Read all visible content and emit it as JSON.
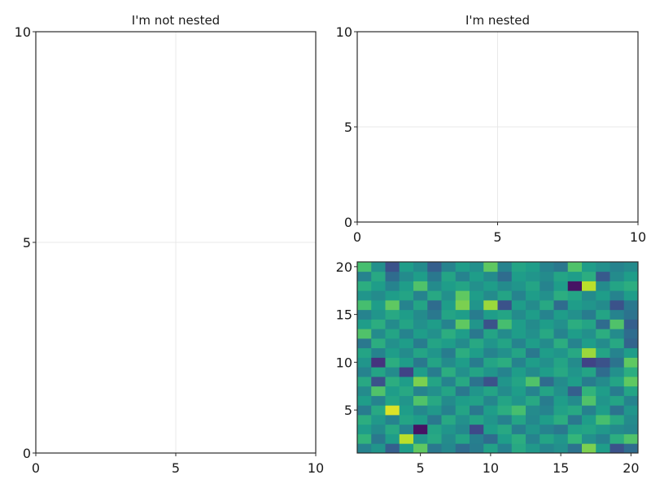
{
  "chart_data": [
    {
      "type": "line",
      "title": "I'm not nested",
      "xlabel": "",
      "ylabel": "",
      "xlim": [
        0,
        10
      ],
      "ylim": [
        0,
        10
      ],
      "xticks": [
        "0",
        "5",
        "10"
      ],
      "yticks": [
        "0",
        "5",
        "10"
      ],
      "grid": true,
      "series": []
    },
    {
      "type": "line",
      "title": "I'm nested",
      "xlabel": "",
      "ylabel": "",
      "xlim": [
        0,
        10
      ],
      "ylim": [
        0,
        10
      ],
      "xticks": [
        "0",
        "5",
        "10"
      ],
      "yticks": [
        "0",
        "5",
        "10"
      ],
      "grid": true,
      "series": []
    },
    {
      "type": "heatmap",
      "title": "",
      "xlabel": "",
      "ylabel": "",
      "colormap": "viridis",
      "xlim": [
        0.5,
        20.5
      ],
      "ylim": [
        0.5,
        20.5
      ],
      "xticks": [
        "5",
        "10",
        "15",
        "20"
      ],
      "yticks": [
        "5",
        "10",
        "15",
        "20"
      ],
      "x": [
        1,
        2,
        3,
        4,
        5,
        6,
        7,
        8,
        9,
        10,
        11,
        12,
        13,
        14,
        15,
        16,
        17,
        18,
        19,
        20
      ],
      "y": [
        1,
        2,
        3,
        4,
        5,
        6,
        7,
        8,
        9,
        10,
        11,
        12,
        13,
        14,
        15,
        16,
        17,
        18,
        19,
        20
      ],
      "values": [
        [
          0.45,
          0.52,
          0.3,
          0.55,
          0.75,
          0.4,
          0.47,
          0.35,
          0.42,
          0.57,
          0.44,
          0.6,
          0.53,
          0.46,
          0.5,
          0.38,
          0.8,
          0.55,
          0.25,
          0.35
        ],
        [
          0.65,
          0.4,
          0.55,
          0.9,
          0.52,
          0.6,
          0.48,
          0.58,
          0.43,
          0.35,
          0.55,
          0.62,
          0.45,
          0.58,
          0.52,
          0.66,
          0.5,
          0.44,
          0.62,
          0.72
        ],
        [
          0.55,
          0.48,
          0.6,
          0.45,
          0.05,
          0.58,
          0.52,
          0.47,
          0.22,
          0.55,
          0.6,
          0.43,
          0.52,
          0.45,
          0.4,
          0.57,
          0.58,
          0.53,
          0.48,
          0.46
        ],
        [
          0.62,
          0.53,
          0.45,
          0.58,
          0.55,
          0.4,
          0.6,
          0.5,
          0.58,
          0.52,
          0.44,
          0.58,
          0.47,
          0.55,
          0.62,
          0.4,
          0.55,
          0.7,
          0.6,
          0.48
        ],
        [
          0.42,
          0.6,
          0.95,
          0.55,
          0.47,
          0.53,
          0.44,
          0.58,
          0.4,
          0.55,
          0.62,
          0.7,
          0.48,
          0.45,
          0.57,
          0.6,
          0.44,
          0.55,
          0.38,
          0.52
        ],
        [
          0.55,
          0.45,
          0.58,
          0.52,
          0.72,
          0.6,
          0.48,
          0.55,
          0.57,
          0.46,
          0.58,
          0.52,
          0.6,
          0.42,
          0.55,
          0.48,
          0.72,
          0.52,
          0.58,
          0.45
        ],
        [
          0.48,
          0.72,
          0.55,
          0.6,
          0.45,
          0.5,
          0.58,
          0.4,
          0.52,
          0.58,
          0.48,
          0.55,
          0.45,
          0.58,
          0.5,
          0.3,
          0.65,
          0.55,
          0.42,
          0.58
        ],
        [
          0.6,
          0.25,
          0.62,
          0.55,
          0.8,
          0.58,
          0.45,
          0.6,
          0.38,
          0.25,
          0.52,
          0.58,
          0.72,
          0.35,
          0.48,
          0.55,
          0.42,
          0.48,
          0.58,
          0.75
        ],
        [
          0.45,
          0.58,
          0.48,
          0.2,
          0.55,
          0.42,
          0.62,
          0.5,
          0.58,
          0.52,
          0.45,
          0.55,
          0.48,
          0.55,
          0.6,
          0.52,
          0.58,
          0.35,
          0.5,
          0.62
        ],
        [
          0.52,
          0.15,
          0.62,
          0.55,
          0.4,
          0.58,
          0.48,
          0.55,
          0.42,
          0.58,
          0.62,
          0.45,
          0.55,
          0.5,
          0.58,
          0.48,
          0.2,
          0.25,
          0.38,
          0.75
        ],
        [
          0.58,
          0.45,
          0.55,
          0.48,
          0.58,
          0.52,
          0.42,
          0.62,
          0.55,
          0.45,
          0.5,
          0.58,
          0.4,
          0.55,
          0.52,
          0.6,
          0.85,
          0.58,
          0.45,
          0.55
        ],
        [
          0.4,
          0.62,
          0.5,
          0.55,
          0.42,
          0.58,
          0.55,
          0.48,
          0.6,
          0.52,
          0.58,
          0.45,
          0.55,
          0.48,
          0.62,
          0.45,
          0.55,
          0.48,
          0.6,
          0.32
        ],
        [
          0.72,
          0.48,
          0.58,
          0.45,
          0.55,
          0.5,
          0.62,
          0.55,
          0.4,
          0.58,
          0.48,
          0.55,
          0.5,
          0.6,
          0.45,
          0.55,
          0.5,
          0.62,
          0.48,
          0.35
        ],
        [
          0.55,
          0.62,
          0.48,
          0.58,
          0.5,
          0.55,
          0.45,
          0.75,
          0.52,
          0.25,
          0.7,
          0.55,
          0.48,
          0.55,
          0.5,
          0.62,
          0.58,
          0.35,
          0.72,
          0.3
        ],
        [
          0.45,
          0.52,
          0.6,
          0.55,
          0.48,
          0.4,
          0.58,
          0.55,
          0.42,
          0.55,
          0.58,
          0.48,
          0.55,
          0.45,
          0.55,
          0.5,
          0.42,
          0.58,
          0.45,
          0.38
        ],
        [
          0.7,
          0.55,
          0.75,
          0.45,
          0.58,
          0.35,
          0.55,
          0.8,
          0.52,
          0.85,
          0.25,
          0.55,
          0.48,
          0.6,
          0.35,
          0.55,
          0.52,
          0.48,
          0.25,
          0.4
        ],
        [
          0.52,
          0.48,
          0.55,
          0.58,
          0.45,
          0.6,
          0.5,
          0.75,
          0.55,
          0.48,
          0.58,
          0.45,
          0.55,
          0.5,
          0.62,
          0.58,
          0.48,
          0.55,
          0.45,
          0.55
        ],
        [
          0.62,
          0.55,
          0.45,
          0.55,
          0.72,
          0.48,
          0.55,
          0.58,
          0.5,
          0.55,
          0.48,
          0.52,
          0.58,
          0.45,
          0.55,
          0.05,
          0.9,
          0.48,
          0.58,
          0.62
        ],
        [
          0.45,
          0.6,
          0.35,
          0.48,
          0.55,
          0.4,
          0.58,
          0.45,
          0.55,
          0.48,
          0.35,
          0.55,
          0.52,
          0.48,
          0.58,
          0.55,
          0.62,
          0.28,
          0.48,
          0.55
        ],
        [
          0.7,
          0.5,
          0.25,
          0.55,
          0.48,
          0.3,
          0.45,
          0.55,
          0.5,
          0.75,
          0.45,
          0.58,
          0.55,
          0.45,
          0.4,
          0.72,
          0.55,
          0.5,
          0.45,
          0.48
        ]
      ]
    }
  ]
}
